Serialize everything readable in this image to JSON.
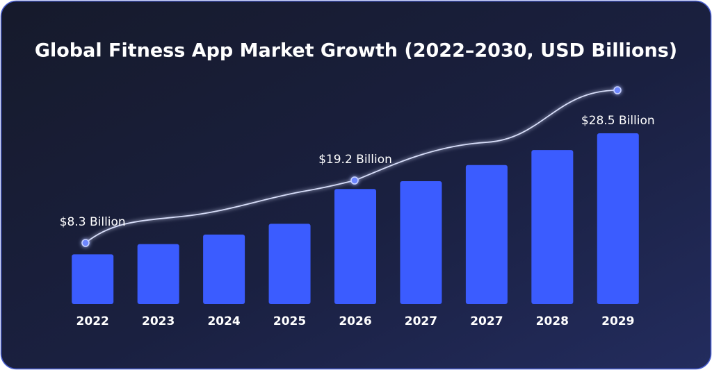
{
  "chart_data": {
    "type": "bar",
    "title": "Global Fitness App Market Growth (2022–2030, USD Billions)",
    "categories": [
      "2022",
      "2023",
      "2024",
      "2025",
      "2026",
      "2027",
      "2027",
      "2028",
      "2029"
    ],
    "values": [
      8.3,
      10.0,
      11.6,
      13.4,
      19.2,
      20.5,
      23.2,
      25.7,
      28.5
    ],
    "value_labels": [
      "$8.3 Billion",
      null,
      null,
      null,
      "$19.2 Billion",
      null,
      null,
      null,
      "$28.5 Billion"
    ],
    "color": "#3b5cff",
    "ylim": [
      0,
      30
    ]
  }
}
